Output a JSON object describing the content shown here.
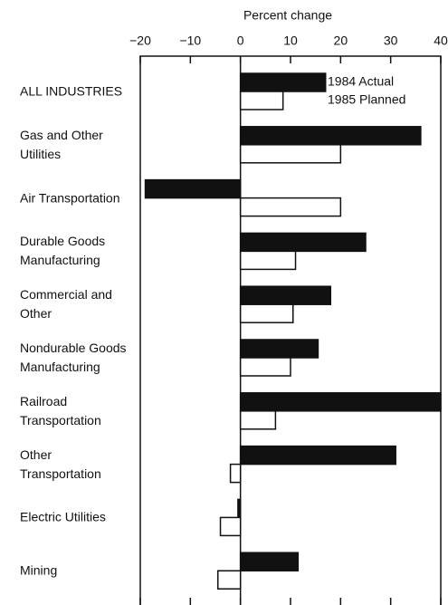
{
  "chart_data": {
    "type": "barh",
    "xlabel": "Percent change",
    "categories": [
      "ALL INDUSTRIES",
      "Gas and Other\nUtilities",
      "Air Transportation",
      "Durable Goods\nManufacturing",
      "Commercial and\nOther",
      "Nondurable Goods\nManufacturing",
      "Railroad\nTransportation",
      "Other\nTransportation",
      "Electric Utilities",
      "Mining"
    ],
    "series": [
      {
        "name": "1984 Actual",
        "color": "#111111",
        "values": [
          17,
          36,
          -19,
          25,
          18,
          15.5,
          40,
          31,
          -0.5,
          11.5
        ]
      },
      {
        "name": "1985 Planned",
        "color": "#ffffff",
        "values": [
          8.5,
          20,
          20,
          11,
          10.5,
          10,
          7,
          -2,
          -4,
          -4.5
        ]
      }
    ],
    "xlim": [
      -20,
      40
    ],
    "xticks": [
      {
        "value": -20,
        "label": "−20"
      },
      {
        "value": -10,
        "label": "−10"
      },
      0,
      10,
      20,
      30,
      40
    ],
    "legend": "upper right"
  }
}
